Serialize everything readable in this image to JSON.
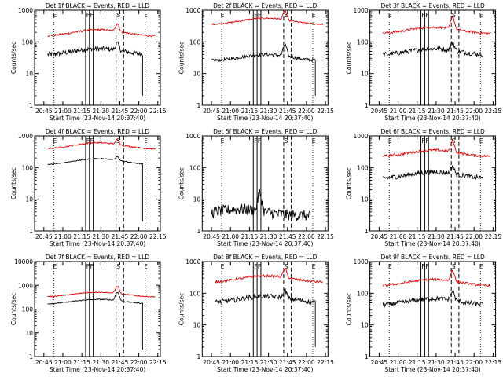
{
  "figure": {
    "start_time": "Start Time (23-Nov-14 20:37:40)",
    "ylabel": "Counts/sec",
    "x_ticks": [
      "20:45",
      "21:00",
      "21:15",
      "21:30",
      "21:45",
      "22:00",
      "22:15"
    ],
    "marker_labels": {
      "first": "E",
      "second": "F",
      "third": "S",
      "fourth": "E"
    },
    "series_colors": {
      "events": "#000000",
      "lld": "#dd0000"
    }
  },
  "chart_data": [
    {
      "type": "line",
      "title": "Det 1f BLACK = Events, RED = LLD",
      "xlabel": "Start Time (23-Nov-14 20:37:40)",
      "ylabel": "Counts/sec",
      "yscale": "log",
      "ylim": [
        1,
        1000
      ],
      "y_ticks": [
        "1",
        "10",
        "100",
        "1000"
      ],
      "x_ticks": [
        "20:45",
        "21:00",
        "21:15",
        "21:30",
        "21:45",
        "22:00",
        "22:15"
      ],
      "marker_times": {
        "solid": [
          "21:18",
          "21:21",
          "21:24"
        ],
        "dashed": [
          "21:42",
          "21:48"
        ],
        "dotted": [
          "20:53",
          "22:05"
        ]
      },
      "series": [
        {
          "color": "black",
          "start": "20:48",
          "end": "22:03",
          "base": 38,
          "peak": 75,
          "peak_at": "21:43",
          "drop_at": "22:03",
          "noise": 0.15
        },
        {
          "color": "red",
          "start": "20:48",
          "end": "22:13",
          "base": 150,
          "peak": 320,
          "peak_at": "21:43",
          "noise": 0.06
        }
      ]
    },
    {
      "type": "line",
      "title": "Det 2f BLACK = Events, RED = LLD",
      "xlabel": "Start Time (23-Nov-14 20:37:40)",
      "ylabel": "Counts/sec",
      "yscale": "log",
      "ylim": [
        1,
        1000
      ],
      "y_ticks": [
        "1",
        "10",
        "100",
        "1000"
      ],
      "x_ticks": [
        "20:45",
        "21:00",
        "21:15",
        "21:30",
        "21:45",
        "22:00",
        "22:15"
      ],
      "marker_times": {
        "solid": [
          "21:18",
          "21:21",
          "21:24"
        ],
        "dashed": [
          "21:42",
          "21:48"
        ],
        "dotted": [
          "20:53",
          "22:05"
        ]
      },
      "series": [
        {
          "color": "black",
          "start": "20:45",
          "end": "22:07",
          "base": 25,
          "peak": 70,
          "peak_at": "21:43",
          "drop_at": "22:07",
          "noise": 0.1
        },
        {
          "color": "red",
          "start": "20:45",
          "end": "22:13",
          "base": 350,
          "peak": 800,
          "peak_at": "21:43",
          "noise": 0.05
        }
      ]
    },
    {
      "type": "line",
      "title": "Det 3f BLACK = Events, RED = LLD",
      "xlabel": "Start Time (23-Nov-14 20:37:40)",
      "ylabel": "Counts/sec",
      "yscale": "log",
      "ylim": [
        1,
        1000
      ],
      "y_ticks": [
        "1",
        "10",
        "100",
        "1000"
      ],
      "x_ticks": [
        "20:45",
        "21:00",
        "21:15",
        "21:30",
        "21:45",
        "22:00",
        "22:15"
      ],
      "marker_times": {
        "solid": [
          "21:18",
          "21:21",
          "21:24"
        ],
        "dashed": [
          "21:42",
          "21:48"
        ],
        "dotted": [
          "20:53",
          "22:05"
        ]
      },
      "series": [
        {
          "color": "black",
          "start": "20:48",
          "end": "22:07",
          "base": 38,
          "peak": 80,
          "peak_at": "21:43",
          "drop_at": "22:07",
          "noise": 0.15
        },
        {
          "color": "red",
          "start": "20:48",
          "end": "22:13",
          "base": 180,
          "peak": 550,
          "peak_at": "21:43",
          "noise": 0.07
        }
      ]
    },
    {
      "type": "line",
      "title": "Det 4f BLACK = Events, RED = LLD",
      "xlabel": "Start Time (23-Nov-14 20:37:40)",
      "ylabel": "Counts/sec",
      "yscale": "log",
      "ylim": [
        1,
        1000
      ],
      "y_ticks": [
        "1",
        "10",
        "100",
        "1000"
      ],
      "x_ticks": [
        "20:45",
        "21:00",
        "21:15",
        "21:30",
        "21:45",
        "22:00",
        "22:15"
      ],
      "marker_times": {
        "solid": [
          "21:18",
          "21:21",
          "21:24"
        ],
        "dashed": [
          "21:42",
          "21:48"
        ],
        "dotted": [
          "20:53",
          "22:05"
        ]
      },
      "series": [
        {
          "color": "black",
          "start": "20:48",
          "end": "22:03",
          "base": 120,
          "peak": 170,
          "peak_at": "21:43",
          "drop_at": "22:03",
          "noise": 0.03
        },
        {
          "color": "red",
          "start": "20:48",
          "end": "22:13",
          "base": 380,
          "peak": 600,
          "peak_at": "21:43",
          "noise": 0.04
        }
      ]
    },
    {
      "type": "line",
      "title": "Det 5f BLACK = Events, RED = LLD",
      "xlabel": "Start Time (23-Nov-14 20:37:40)",
      "ylabel": "Counts/sec",
      "yscale": "log",
      "ylim": [
        1,
        1000
      ],
      "y_ticks": [
        "1",
        "10",
        "100",
        "1000"
      ],
      "x_ticks": [
        "20:45",
        "21:00",
        "21:15",
        "21:30",
        "21:45",
        "22:00",
        "22:15"
      ],
      "marker_times": {
        "solid": [
          "21:18",
          "21:21",
          "21:24"
        ],
        "dashed": [
          "21:42",
          "21:48"
        ],
        "dotted": [
          "20:53",
          "22:05"
        ]
      },
      "series": [
        {
          "color": "black",
          "start": "20:45",
          "end": "22:03",
          "base": 3,
          "peak": 14,
          "peak_at": "21:23",
          "noise": 0.35
        }
      ]
    },
    {
      "type": "line",
      "title": "Det 6f BLACK = Events, RED = LLD",
      "xlabel": "Start Time (23-Nov-14 20:37:40)",
      "ylabel": "Counts/sec",
      "yscale": "log",
      "ylim": [
        1,
        1000
      ],
      "y_ticks": [
        "1",
        "10",
        "100",
        "1000"
      ],
      "x_ticks": [
        "20:45",
        "21:00",
        "21:15",
        "21:30",
        "21:45",
        "22:00",
        "22:15"
      ],
      "marker_times": {
        "solid": [
          "21:18",
          "21:21",
          "21:24"
        ],
        "dashed": [
          "21:42",
          "21:48"
        ],
        "dotted": [
          "20:53",
          "22:05"
        ]
      },
      "series": [
        {
          "color": "black",
          "start": "20:48",
          "end": "22:07",
          "base": 45,
          "peak": 90,
          "peak_at": "21:43",
          "drop_at": "22:07",
          "noise": 0.15
        },
        {
          "color": "red",
          "start": "20:48",
          "end": "22:13",
          "base": 220,
          "peak": 600,
          "peak_at": "21:43",
          "noise": 0.08
        }
      ]
    },
    {
      "type": "line",
      "title": "Det 7f BLACK = Events, RED = LLD",
      "xlabel": "Start Time (23-Nov-14 20:37:40)",
      "ylabel": "Counts/sec",
      "yscale": "log",
      "ylim": [
        1,
        10000
      ],
      "y_ticks": [
        "1",
        "10",
        "100",
        "1000",
        "10000"
      ],
      "x_ticks": [
        "20:45",
        "21:00",
        "21:15",
        "21:30",
        "21:45",
        "22:00",
        "22:15"
      ],
      "marker_times": {
        "solid": [
          "21:18",
          "21:21",
          "21:24"
        ],
        "dashed": [
          "21:42",
          "21:48"
        ],
        "dotted": [
          "20:53",
          "22:05"
        ]
      },
      "series": [
        {
          "color": "black",
          "start": "20:48",
          "end": "22:03",
          "base": 160,
          "peak": 450,
          "peak_at": "21:43",
          "drop_at": "22:03",
          "noise": 0.04
        },
        {
          "color": "red",
          "start": "20:48",
          "end": "22:13",
          "base": 320,
          "peak": 800,
          "peak_at": "21:43",
          "noise": 0.04
        }
      ]
    },
    {
      "type": "line",
      "title": "Det 8f BLACK = Events, RED = LLD",
      "xlabel": "Start Time (23-Nov-14 20:37:40)",
      "ylabel": "Counts/sec",
      "yscale": "log",
      "ylim": [
        1,
        1000
      ],
      "y_ticks": [
        "1",
        "10",
        "100",
        "1000"
      ],
      "x_ticks": [
        "20:45",
        "21:00",
        "21:15",
        "21:30",
        "21:45",
        "22:00",
        "22:15"
      ],
      "marker_times": {
        "solid": [
          "21:18",
          "21:21",
          "21:24"
        ],
        "dashed": [
          "21:42",
          "21:48"
        ],
        "dotted": [
          "20:53",
          "22:05"
        ]
      },
      "series": [
        {
          "color": "black",
          "start": "20:48",
          "end": "22:07",
          "base": 50,
          "peak": 100,
          "peak_at": "21:43",
          "drop_at": "22:07",
          "noise": 0.15
        },
        {
          "color": "red",
          "start": "20:48",
          "end": "22:13",
          "base": 220,
          "peak": 500,
          "peak_at": "21:43",
          "noise": 0.07
        }
      ]
    },
    {
      "type": "line",
      "title": "Det 9f BLACK = Events, RED = LLD",
      "xlabel": "Start Time (23-Nov-14 20:37:40)",
      "ylabel": "Counts/sec",
      "yscale": "log",
      "ylim": [
        1,
        1000
      ],
      "y_ticks": [
        "1",
        "10",
        "100",
        "1000"
      ],
      "x_ticks": [
        "20:45",
        "21:00",
        "21:15",
        "21:30",
        "21:45",
        "22:00",
        "22:15"
      ],
      "marker_times": {
        "solid": [
          "21:18",
          "21:21",
          "21:24"
        ],
        "dashed": [
          "21:42",
          "21:48"
        ],
        "dotted": [
          "20:53",
          "22:05"
        ]
      },
      "series": [
        {
          "color": "black",
          "start": "20:48",
          "end": "22:07",
          "base": 42,
          "peak": 95,
          "peak_at": "21:43",
          "drop_at": "22:07",
          "noise": 0.15
        },
        {
          "color": "red",
          "start": "20:48",
          "end": "22:13",
          "base": 170,
          "peak": 450,
          "peak_at": "21:43",
          "noise": 0.07
        }
      ]
    }
  ]
}
